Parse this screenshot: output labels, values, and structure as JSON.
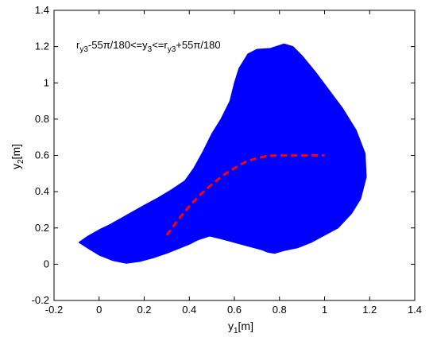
{
  "chart_data": {
    "type": "area",
    "xlabel_main": "y",
    "xlabel_sub": "1",
    "xlabel_unit": "[m]",
    "ylabel_main": "y",
    "ylabel_sub": "2",
    "ylabel_unit": "[m]",
    "xlim": [
      -0.2,
      1.4
    ],
    "ylim": [
      -0.2,
      1.4
    ],
    "xticks": [
      "-0.2",
      "0",
      "0.2",
      "0.4",
      "0.6",
      "0.8",
      "1",
      "1.2",
      "1.4"
    ],
    "yticks": [
      "-0.2",
      "0",
      "0.2",
      "0.4",
      "0.6",
      "0.8",
      "1",
      "1.2",
      "1.4"
    ],
    "grid": false,
    "annotation": {
      "p1": "r",
      "p1_sub": "y3",
      "p2": "-55π/180<=y",
      "p2_sub": "3",
      "p3": "<=r",
      "p3_sub": "y3",
      "p4": "+55π/180"
    },
    "series": [
      {
        "kind": "filled-region",
        "color": "#0000ff",
        "x": [
          -0.09,
          -0.05,
          0.0,
          0.05,
          0.1,
          0.15,
          0.2,
          0.26,
          0.32,
          0.38,
          0.42,
          0.46,
          0.5,
          0.54,
          0.58,
          0.6,
          0.62,
          0.66,
          0.7,
          0.76,
          0.82,
          0.86,
          0.9,
          0.96,
          1.02,
          1.08,
          1.14,
          1.18,
          1.185,
          1.16,
          1.12,
          1.06,
          1.0,
          0.94,
          0.88,
          0.82,
          0.78,
          0.75,
          0.72,
          0.66,
          0.6,
          0.54,
          0.49,
          0.44,
          0.4,
          0.35,
          0.3,
          0.24,
          0.18,
          0.12,
          0.06,
          0.0,
          -0.04,
          -0.09
        ],
        "y": [
          0.12,
          0.155,
          0.19,
          0.22,
          0.255,
          0.29,
          0.325,
          0.365,
          0.41,
          0.46,
          0.53,
          0.62,
          0.72,
          0.8,
          0.9,
          1.0,
          1.08,
          1.16,
          1.185,
          1.19,
          1.215,
          1.2,
          1.15,
          1.06,
          0.96,
          0.86,
          0.74,
          0.61,
          0.48,
          0.36,
          0.28,
          0.2,
          0.16,
          0.12,
          0.09,
          0.075,
          0.06,
          0.065,
          0.08,
          0.1,
          0.12,
          0.14,
          0.155,
          0.135,
          0.11,
          0.085,
          0.06,
          0.035,
          0.015,
          0.005,
          0.02,
          0.05,
          0.08,
          0.12
        ]
      },
      {
        "kind": "dashed-line",
        "color": "#ff0000",
        "x": [
          0.3,
          0.35,
          0.4,
          0.45,
          0.5,
          0.55,
          0.6,
          0.65,
          0.7,
          0.75,
          0.8,
          0.9,
          1.0
        ],
        "y": [
          0.16,
          0.245,
          0.32,
          0.385,
          0.44,
          0.49,
          0.53,
          0.565,
          0.585,
          0.598,
          0.6,
          0.6,
          0.6
        ]
      }
    ]
  }
}
